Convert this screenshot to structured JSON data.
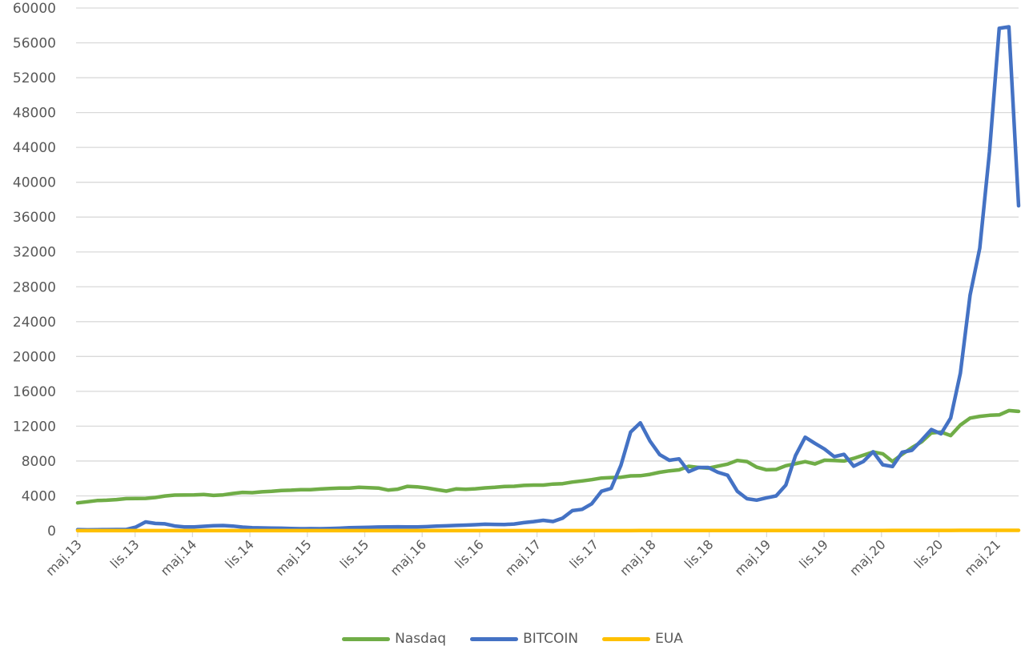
{
  "chart_data": {
    "type": "line",
    "title": "",
    "xlabel": "",
    "ylabel": "",
    "ylim": [
      0,
      60000
    ],
    "yticks": [
      0,
      4000,
      8000,
      12000,
      16000,
      20000,
      24000,
      28000,
      32000,
      36000,
      40000,
      44000,
      48000,
      52000,
      56000,
      60000
    ],
    "grid": true,
    "legend_position": "bottom",
    "x_tick_labels": [
      "maj.13",
      "lis.13",
      "maj.14",
      "lis.14",
      "maj.15",
      "lis.15",
      "maj.16",
      "lis.16",
      "maj.17",
      "lis.17",
      "maj.18",
      "lis.18",
      "maj.19",
      "lis.19",
      "maj.20",
      "lis.20",
      "maj.21"
    ],
    "x_frequency": "monthly",
    "x_start": "maj.13",
    "series": [
      {
        "name": "Nasdaq",
        "color": "#70AD47",
        "values": [
          3200,
          3300,
          3450,
          3500,
          3500,
          3600,
          3700,
          3700,
          3700,
          3750,
          3900,
          4050,
          4100,
          4100,
          4100,
          4200,
          4050,
          4050,
          4150,
          4300,
          4400,
          4350,
          4450,
          4500,
          4550,
          4650,
          4650,
          4700,
          4700,
          4750,
          4850,
          4850,
          4900,
          4900,
          5000,
          4900,
          5050,
          4700,
          4650,
          4800,
          5100,
          5050,
          4950,
          4800,
          4650,
          4500,
          4850,
          4750,
          4800,
          4900,
          4950,
          5000,
          5100,
          5100,
          5200,
          5250,
          5200,
          5300,
          5400,
          5400,
          5600,
          5700,
          5800,
          6000,
          6100,
          6100,
          6150,
          6300,
          6300,
          6400,
          6600,
          6800,
          6900,
          7000,
          7400,
          7300,
          7100,
          7300,
          7500,
          7700,
          8100,
          8000,
          7300,
          7300,
          6600,
          7300,
          7500,
          7700,
          8000,
          7500,
          8000,
          8200,
          8000,
          8000,
          8300,
          8600,
          9000,
          9100,
          8600,
          7700,
          8900,
          9500,
          10000,
          10800,
          11800,
          11000,
          10900,
          12200,
          12900,
          13100,
          13200,
          13300,
          13300,
          13900,
          13700
        ],
        "interpolate_to_length": 98
      },
      {
        "name": "BITCOIN",
        "color": "#4472C4",
        "values": [
          130,
          100,
          120,
          130,
          140,
          130,
          200,
          1100,
          800,
          900,
          600,
          450,
          430,
          450,
          550,
          600,
          590,
          500,
          380,
          340,
          320,
          300,
          280,
          250,
          230,
          240,
          230,
          250,
          280,
          330,
          370,
          380,
          420,
          430,
          450,
          440,
          430,
          440,
          500,
          540,
          580,
          620,
          650,
          700,
          760,
          720,
          720,
          780,
          950,
          1050,
          1200,
          1050,
          1400,
          2300,
          2400,
          2750,
          4600,
          4300,
          6400,
          10000,
          13800,
          10200,
          10400,
          6900,
          9200,
          7500,
          6300,
          7800,
          7000,
          6600,
          6300,
          4100,
          3600,
          3500,
          3800,
          4000,
          5200,
          8500,
          10800,
          10100,
          9600,
          8300,
          9200,
          7500,
          7200,
          9400,
          8500,
          6300,
          8600,
          9400,
          9100,
          11300,
          11800,
          10800,
          13800,
          19500,
          29000,
          33100,
          45000,
          58800,
          57800,
          37300
        ],
        "interpolate_to_length": 98
      },
      {
        "name": "EUA",
        "color": "#FFC000",
        "values": [
          5,
          5,
          5,
          5,
          6,
          7,
          8,
          10,
          15,
          20,
          25,
          30,
          40,
          50
        ],
        "interpolate_to_length": 98
      }
    ]
  },
  "legend": {
    "items": [
      {
        "label": "Nasdaq",
        "color": "#70AD47"
      },
      {
        "label": "BITCOIN",
        "color": "#4472C4"
      },
      {
        "label": "EUA",
        "color": "#FFC000"
      }
    ]
  },
  "style": {
    "gridline_color": "#D9D9D9",
    "axis_text_color": "#595959"
  }
}
